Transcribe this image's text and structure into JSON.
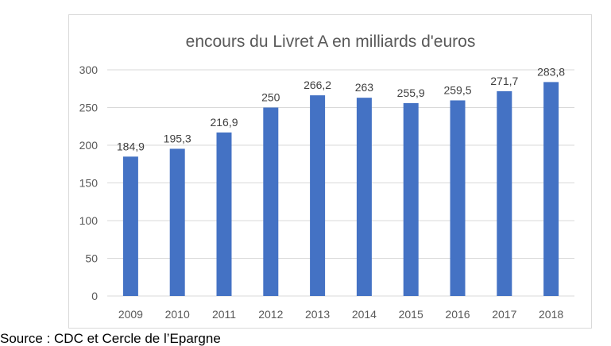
{
  "source": "Source : CDC et Cercle de l’Epargne",
  "chart_data": {
    "type": "bar",
    "title": "encours du Livret A en milliards d'euros",
    "xlabel": "",
    "ylabel": "",
    "categories": [
      "2009",
      "2010",
      "2011",
      "2012",
      "2013",
      "2014",
      "2015",
      "2016",
      "2017",
      "2018"
    ],
    "values": [
      184.9,
      195.3,
      216.9,
      250,
      266.2,
      263,
      255.9,
      259.5,
      271.7,
      283.8
    ],
    "data_labels": [
      "184,9",
      "195,3",
      "216,9",
      "250",
      "266,2",
      "263",
      "255,9",
      "259,5",
      "271,7",
      "283,8"
    ],
    "ylim": [
      0,
      300
    ],
    "yticks": [
      0,
      50,
      100,
      150,
      200,
      250,
      300
    ],
    "grid": true,
    "legend": "none",
    "bar_color": "#4472c4",
    "gridline_color": "#d9d9d9",
    "text_color": "#595959"
  }
}
